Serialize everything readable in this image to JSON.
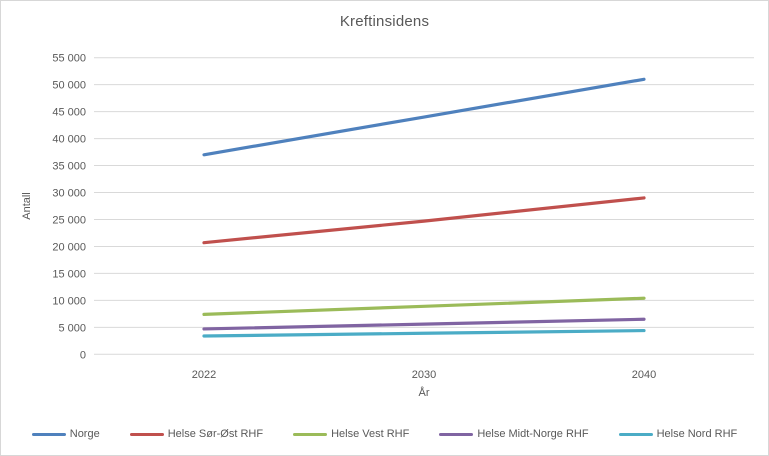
{
  "chart": {
    "title": "Kreftinsidens",
    "y_axis_title": "Antall",
    "x_axis_title": "År"
  },
  "chart_data": {
    "type": "line",
    "title": "Kreftinsidens",
    "xlabel": "År",
    "ylabel": "Antall",
    "categories": [
      "2022",
      "2030",
      "2040"
    ],
    "series": [
      {
        "name": "Norge",
        "color": "#4F81BD",
        "values": [
          37000,
          44000,
          51000
        ]
      },
      {
        "name": "Helse Sør-Øst RHF",
        "color": "#C0504D",
        "values": [
          20700,
          24700,
          29000
        ]
      },
      {
        "name": "Helse Vest RHF",
        "color": "#9BBB59",
        "values": [
          7400,
          8900,
          10400
        ]
      },
      {
        "name": "Helse Midt-Norge RHF",
        "color": "#8064A2",
        "values": [
          4700,
          5600,
          6500
        ]
      },
      {
        "name": "Helse Nord RHF",
        "color": "#4BACC6",
        "values": [
          3400,
          3900,
          4400
        ]
      }
    ],
    "ylim": [
      0,
      55000
    ],
    "y_tick_step": 5000,
    "y_tick_labels": [
      "0",
      "5 000",
      "10 000",
      "15 000",
      "20 000",
      "25 000",
      "30 000",
      "35 000",
      "40 000",
      "45 000",
      "50 000",
      "55 000"
    ],
    "grid": true,
    "gridline_color": "#d9d9d9",
    "legend_position": "bottom"
  }
}
